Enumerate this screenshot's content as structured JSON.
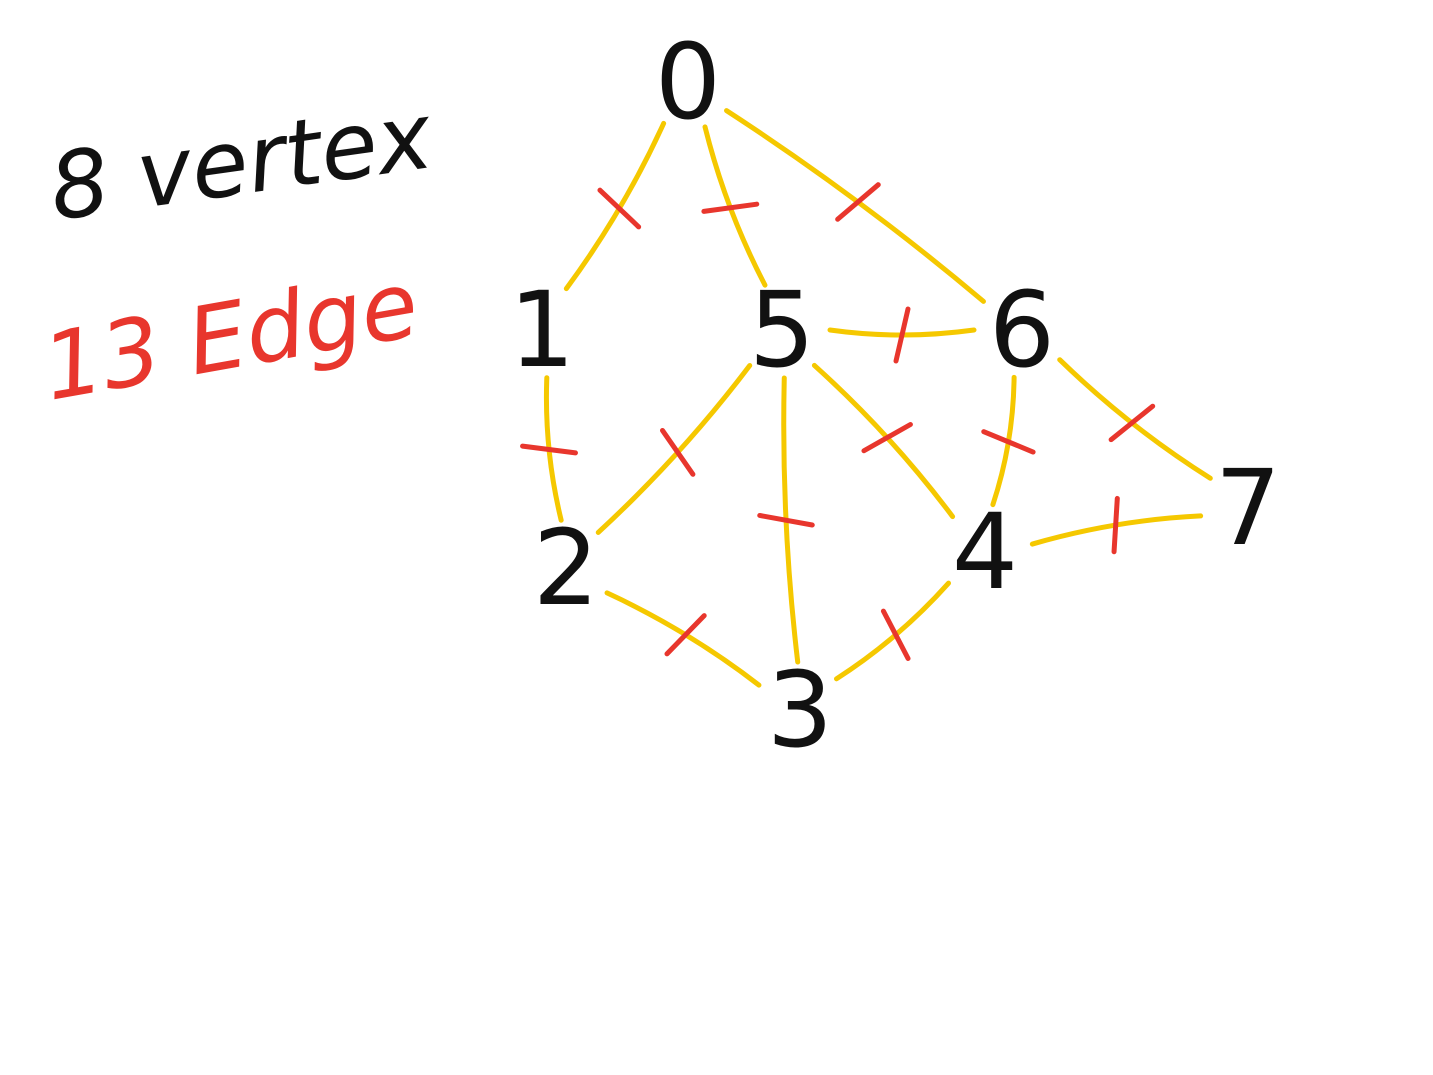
{
  "notes": {
    "vertex_count": "8 vertex",
    "edge_count": "13 Edge"
  },
  "graph": {
    "vertices": [
      "0",
      "1",
      "2",
      "3",
      "4",
      "5",
      "6",
      "7"
    ],
    "edges": [
      [
        "0",
        "1"
      ],
      [
        "0",
        "5"
      ],
      [
        "0",
        "6"
      ],
      [
        "1",
        "2"
      ],
      [
        "5",
        "2"
      ],
      [
        "5",
        "3"
      ],
      [
        "5",
        "4"
      ],
      [
        "5",
        "6"
      ],
      [
        "2",
        "3"
      ],
      [
        "3",
        "4"
      ],
      [
        "6",
        "4"
      ],
      [
        "6",
        "7"
      ],
      [
        "4",
        "7"
      ]
    ]
  },
  "colors": {
    "vertex_ink": "#111111",
    "edge_ink": "#f5c800",
    "tick_ink": "#e8362d",
    "note_vertex_ink": "#111111",
    "note_edge_ink": "#e8362d"
  }
}
